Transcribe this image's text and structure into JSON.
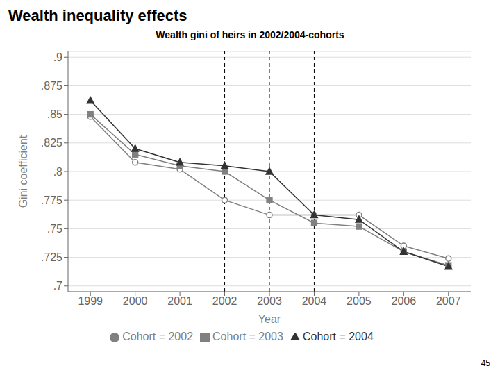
{
  "chart_data": {
    "type": "line",
    "title": "Wealth inequality effects",
    "subtitle": "Wealth gini of heirs in 2002/2004-cohorts",
    "xlabel": "Year",
    "ylabel": "Gini coefficient",
    "x": [
      1999,
      2000,
      2001,
      2002,
      2003,
      2004,
      2005,
      2006,
      2007
    ],
    "series": [
      {
        "name": "Cohort = 2002",
        "color": "#808080",
        "marker": "circle",
        "values": [
          0.848,
          0.808,
          0.802,
          0.775,
          0.762,
          0.762,
          0.762,
          0.735,
          0.724
        ]
      },
      {
        "name": "Cohort = 2003",
        "color": "#808080",
        "marker": "square",
        "values": [
          0.85,
          0.815,
          0.805,
          0.8,
          0.775,
          0.755,
          0.752,
          0.73,
          0.718
        ]
      },
      {
        "name": "Cohort = 2004",
        "color": "#333333",
        "marker": "triangle",
        "values": [
          0.862,
          0.82,
          0.808,
          0.805,
          0.8,
          0.762,
          0.758,
          0.73,
          0.717
        ]
      }
    ],
    "vlines": [
      2002,
      2003,
      2004
    ],
    "xlim": [
      1998.5,
      2007.5
    ],
    "xticks": [
      1999,
      2000,
      2001,
      2002,
      2003,
      2004,
      2005,
      2006,
      2007
    ],
    "ylim": [
      0.695,
      0.905
    ],
    "yticks": [
      {
        "value": 0.7,
        "label": ".7"
      },
      {
        "value": 0.725,
        "label": ".725"
      },
      {
        "value": 0.75,
        "label": ".75"
      },
      {
        "value": 0.775,
        "label": ".775"
      },
      {
        "value": 0.8,
        "label": ".8"
      },
      {
        "value": 0.825,
        "label": ".825"
      },
      {
        "value": 0.85,
        "label": ".85"
      },
      {
        "value": 0.875,
        "label": ".875"
      },
      {
        "value": 0.9,
        "label": ".9"
      }
    ],
    "grid": true,
    "legend": "bottom",
    "page_number": "45"
  }
}
